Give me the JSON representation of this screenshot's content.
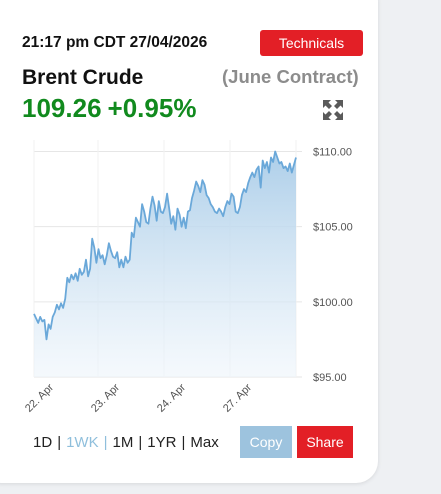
{
  "header": {
    "timestamp": "21:17 pm CDT 27/04/2026",
    "technicals_label": "Technicals"
  },
  "quote": {
    "name": "Brent Crude",
    "contract": "(June Contract)",
    "price": "109.26",
    "change": "+0.95%",
    "price_color": "#118a1e"
  },
  "icons": {
    "expand": "expand-arrows-icon"
  },
  "chart_data": {
    "type": "area",
    "title": "",
    "xlabel": "",
    "ylabel": "",
    "x_tick_labels": [
      "22. Apr",
      "23. Apr",
      "24. Apr",
      "27. Apr"
    ],
    "y_tick_labels": [
      "$110.00",
      "$105.00",
      "$100.00",
      "$95.00"
    ],
    "y_ticks": [
      110,
      105,
      100,
      95
    ],
    "ylim": [
      95,
      110.5
    ],
    "grid": true,
    "line_color": "#6aa8d9",
    "series": [
      {
        "values": [
          99.2,
          98.9,
          98.6,
          99.0,
          98.7,
          98.8,
          97.5,
          98.5,
          98.2,
          99.0,
          99.3,
          99.8,
          99.5,
          99.9,
          99.6,
          100.2,
          101.6,
          101.3,
          101.8,
          101.5,
          101.9,
          101.4,
          102.2,
          101.8,
          102.0,
          102.8,
          101.7,
          102.2,
          104.2,
          103.6,
          102.6,
          103.5,
          102.9,
          103.1,
          102.5,
          103.1,
          103.9,
          103.4,
          103.0,
          102.9,
          103.3,
          102.3,
          102.8,
          102.3,
          103.0,
          102.6,
          102.8,
          104.6,
          104.3,
          105.6,
          105.3,
          105.0,
          106.5,
          106.0,
          105.3,
          105.2,
          106.2,
          107.0,
          106.4,
          105.4,
          106.7,
          106.0,
          105.9,
          106.3,
          107.2,
          106.2,
          105.2,
          105.7,
          104.8,
          106.2,
          105.8,
          105.0,
          105.6,
          104.9,
          106.0,
          106.1,
          106.9,
          107.4,
          108.0,
          107.7,
          107.3,
          108.1,
          107.8,
          107.1,
          106.9,
          106.5,
          106.3,
          106.0,
          105.9,
          106.2,
          106.0,
          105.7,
          106.3,
          106.7,
          106.5,
          107.2,
          107.0,
          106.0,
          105.9,
          106.3,
          107.1,
          107.5,
          107.3,
          107.9,
          108.3,
          108.6,
          108.3,
          108.8,
          109.0,
          107.6,
          109.4,
          108.9,
          109.3,
          108.6,
          109.6,
          109.3,
          110.0,
          109.6,
          109.2,
          109.3,
          108.9,
          109.0,
          108.7,
          109.2,
          108.6,
          109.1,
          109.6
        ]
      }
    ]
  },
  "periods": [
    {
      "label": "1D",
      "active": false
    },
    {
      "label": "1WK",
      "active": true
    },
    {
      "label": "1M",
      "active": false
    },
    {
      "label": "1YR",
      "active": false
    },
    {
      "label": "Max",
      "active": false
    }
  ],
  "separator": "|",
  "actions": {
    "copy_label": "Copy",
    "share_label": "Share"
  }
}
